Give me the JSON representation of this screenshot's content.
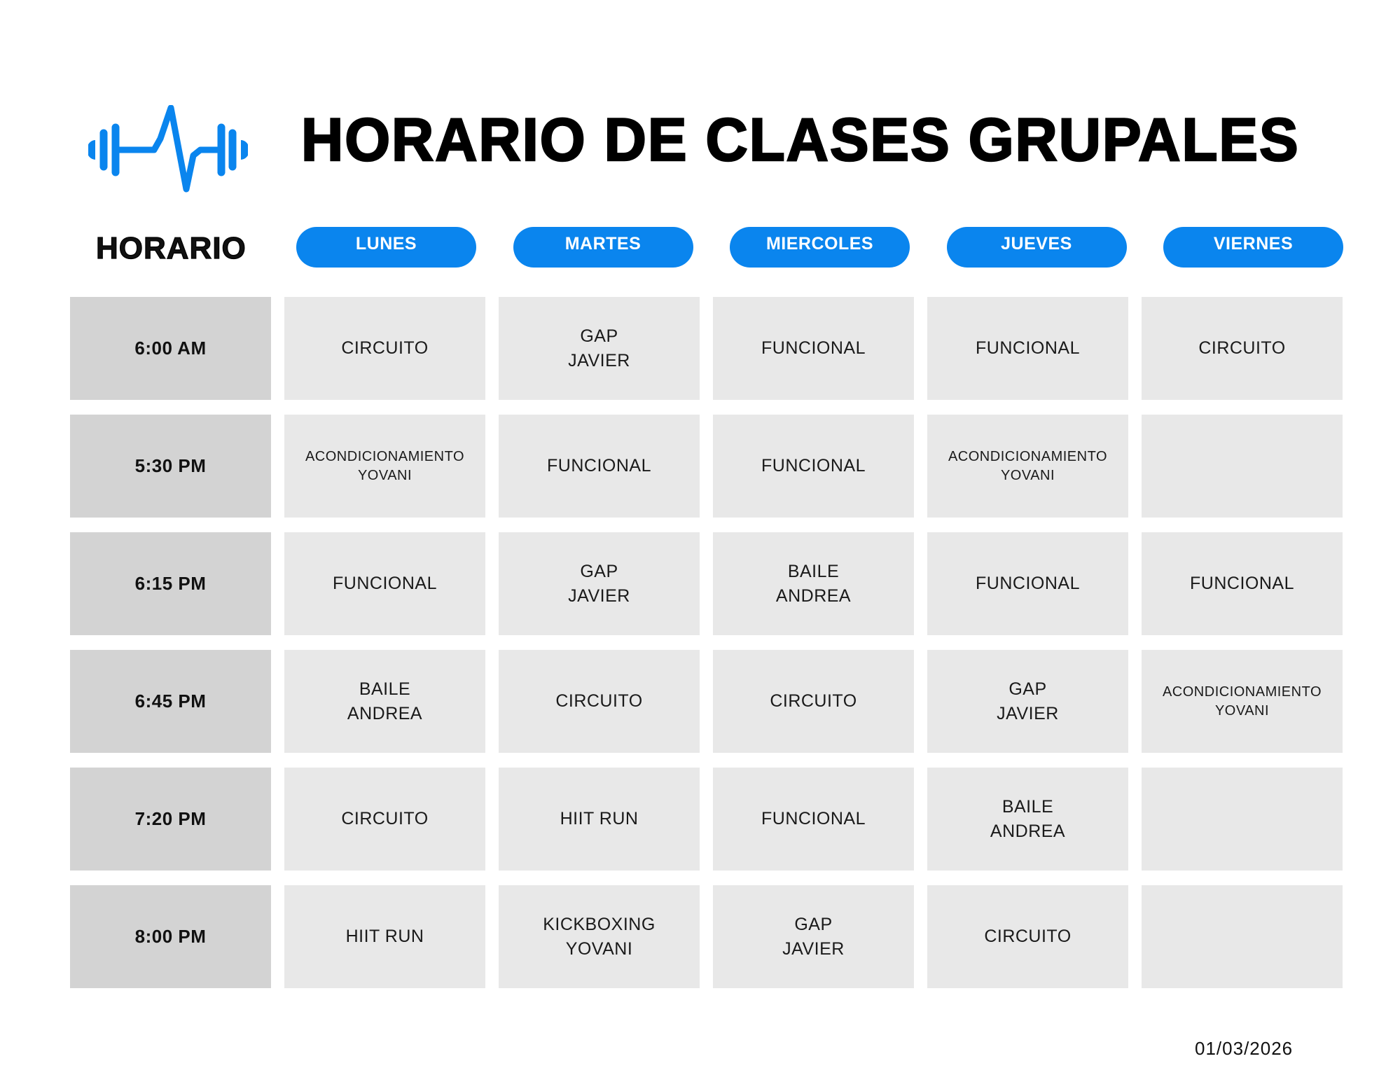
{
  "title": "HORARIO DE CLASES GRUPALES",
  "logo_icon": "dumbbell-heartbeat-icon",
  "accent_color": "#0a85ee",
  "horario_label": "HORARIO",
  "days": [
    "LUNES",
    "MARTES",
    "MIERCOLES",
    "JUEVES",
    "VIERNES"
  ],
  "rows": [
    {
      "time": "6:00 AM",
      "cells": [
        [
          "CIRCUITO"
        ],
        [
          "GAP",
          "JAVIER"
        ],
        [
          "FUNCIONAL"
        ],
        [
          "FUNCIONAL"
        ],
        [
          "CIRCUITO"
        ]
      ]
    },
    {
      "time": "5:30 PM",
      "cells": [
        [
          "ACONDICIONAMIENTO",
          "YOVANI"
        ],
        [
          "FUNCIONAL"
        ],
        [
          "FUNCIONAL"
        ],
        [
          "ACONDICIONAMIENTO",
          "YOVANI"
        ],
        []
      ]
    },
    {
      "time": "6:15 PM",
      "cells": [
        [
          "FUNCIONAL"
        ],
        [
          "GAP",
          "JAVIER"
        ],
        [
          "BAILE",
          "ANDREA"
        ],
        [
          "FUNCIONAL"
        ],
        [
          "FUNCIONAL"
        ]
      ]
    },
    {
      "time": "6:45 PM",
      "cells": [
        [
          "BAILE",
          "ANDREA"
        ],
        [
          "CIRCUITO"
        ],
        [
          "CIRCUITO"
        ],
        [
          "GAP",
          "JAVIER"
        ],
        [
          "ACONDICIONAMIENTO",
          "YOVANI"
        ]
      ]
    },
    {
      "time": "7:20 PM",
      "cells": [
        [
          "CIRCUITO"
        ],
        [
          "HIIT RUN"
        ],
        [
          "FUNCIONAL"
        ],
        [
          "BAILE",
          "ANDREA"
        ],
        []
      ]
    },
    {
      "time": "8:00 PM",
      "cells": [
        [
          "HIIT RUN"
        ],
        [
          "KICKBOXING",
          "YOVANI"
        ],
        [
          "GAP",
          "JAVIER"
        ],
        [
          "CIRCUITO"
        ],
        []
      ]
    }
  ],
  "date": "01/03/2026"
}
